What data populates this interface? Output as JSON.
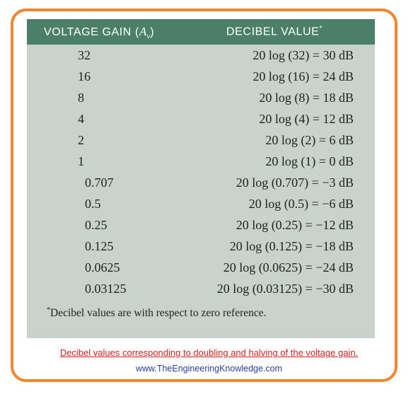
{
  "table": {
    "header": {
      "col1": "VOLTAGE GAIN",
      "col1_symbol": "A",
      "col1_sub": "v",
      "col2": "DECIBEL VALUE",
      "col2_mark": "*"
    },
    "rows": [
      {
        "gain": "32",
        "db": "20 log (32) = 30 dB"
      },
      {
        "gain": "16",
        "db": "20 log (16) = 24 dB"
      },
      {
        "gain": "8",
        "db": "20 log (8) = 18 dB"
      },
      {
        "gain": "4",
        "db": "20 log (4) = 12 dB"
      },
      {
        "gain": "2",
        "db": "20 log (2) = 6 dB"
      },
      {
        "gain": "1",
        "db": "20 log (1) = 0 dB"
      },
      {
        "gain": "0.707",
        "db": "20 log (0.707) = −3 dB"
      },
      {
        "gain": "0.5",
        "db": "20 log (0.5) = −6 dB"
      },
      {
        "gain": "0.25",
        "db": "20 log (0.25) = −12 dB"
      },
      {
        "gain": "0.125",
        "db": "20 log (0.125) = −18 dB"
      },
      {
        "gain": "0.0625",
        "db": "20 log (0.0625) = −24 dB"
      },
      {
        "gain": "0.03125",
        "db": "20 log (0.03125) = −30 dB"
      }
    ],
    "footnote_mark": "*",
    "footnote": "Decibel values are with respect to zero reference."
  },
  "caption": "Decibel values corresponding to doubling and halving of the voltage gain.",
  "website": "www.TheEngineeringKnowledge.com",
  "colors": {
    "frame_border": "#f0862d",
    "header_bg": "#4c7f6a",
    "table_bg": "#c9d3cb",
    "caption": "#cc1f1f",
    "website": "#2a3f9c"
  }
}
